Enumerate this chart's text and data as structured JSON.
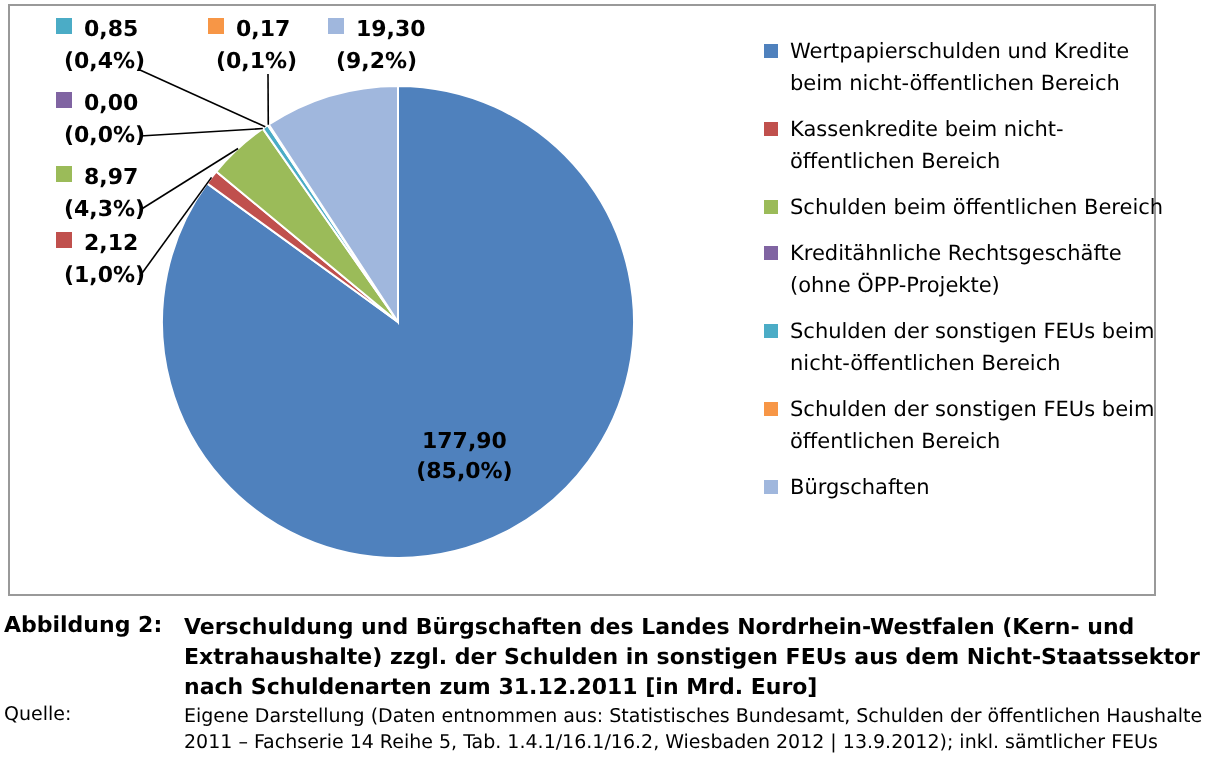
{
  "chart_data": {
    "type": "pie",
    "title": "Verschuldung und Bürgschaften des Landes Nordrhein-Westfalen (Kern- und Extrahaushalte) zzgl. der Schulden in sonstigen FEUs aus dem Nicht-Staatssektor nach Schuldenarten zum 31.12.2011 [in Mrd. Euro]",
    "categories": [
      "Wertpapierschulden und Kredite beim nicht-öffentlichen Bereich",
      "Kassenkredite beim nicht-öffentlichen Bereich",
      "Schulden beim öffentlichen Bereich",
      "Kreditähnliche Rechtsgeschäfte (ohne ÖPP-Projekte)",
      "Schulden der sonstigen  FEUs beim nicht-öffentlichen Bereich",
      "Schulden der sonstigen  FEUs beim öffentlichen Bereich",
      "Bürgschaften"
    ],
    "values": [
      177.9,
      2.12,
      8.97,
      0.0,
      0.85,
      0.17,
      19.3
    ],
    "colors": [
      "#4f81bd",
      "#c0504d",
      "#9bbb59",
      "#8064a2",
      "#4bacc6",
      "#f79646",
      "#a0b7dd"
    ],
    "value_labels": [
      "177,90 (85,0%)",
      "2,12 (1,0%)",
      "8,97 (4,3%)",
      "0,00 (0,0%)",
      "0,85 (0,4%)",
      "0,17 (0,1%)",
      "19,30 (9,2%)"
    ],
    "legend": "right",
    "annotations": [
      "Abbildung 2:",
      "Quelle:",
      "Eigene Darstellung (Daten entnommen aus: Statistisches Bundesamt, Schulden der öffentlichen Haushalte 2011 – Fachserie 14 Reihe 5, Tab. 1.4.1/16.1/16.2,  Wiesbaden 2012 |  13.9.2012);  inkl. sämtlicher FEUs"
    ]
  }
}
